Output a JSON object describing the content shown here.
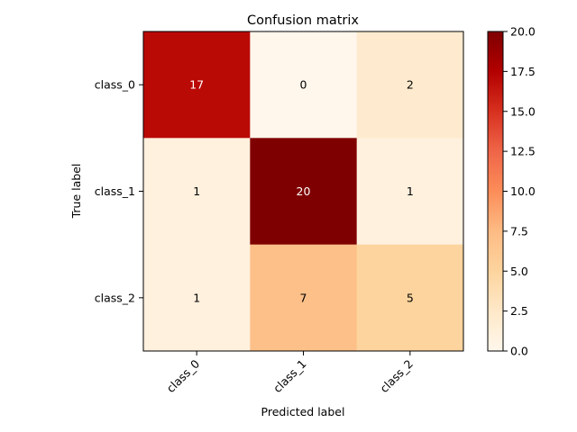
{
  "chart_data": {
    "type": "heatmap",
    "title": "Confusion matrix",
    "xlabel": "Predicted label",
    "ylabel": "True label",
    "x_categories": [
      "class_0",
      "class_1",
      "class_2"
    ],
    "y_categories": [
      "class_0",
      "class_1",
      "class_2"
    ],
    "values": [
      [
        17,
        0,
        2
      ],
      [
        1,
        20,
        1
      ],
      [
        1,
        7,
        5
      ]
    ],
    "colorscale": "OrRd",
    "colorbar": {
      "range": [
        0.0,
        20.0
      ],
      "ticks": [
        "0.0",
        "2.5",
        "5.0",
        "7.5",
        "10.0",
        "12.5",
        "15.0",
        "17.5",
        "20.0"
      ]
    },
    "text_colors": {
      "dark": "#ffffff",
      "light": "#000000"
    }
  }
}
